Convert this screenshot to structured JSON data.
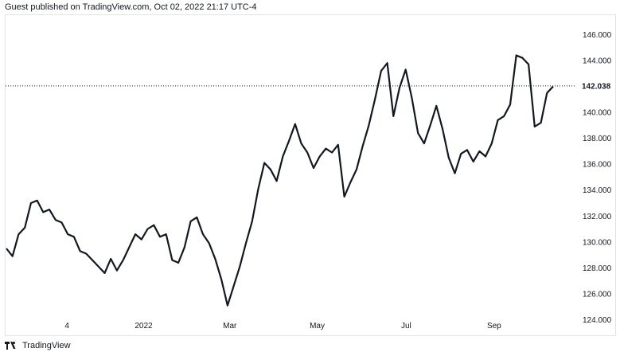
{
  "header": {
    "text": "Guest published on TradingView.com, Oct 02, 2022 21:17 UTC-4"
  },
  "footer": {
    "brand": "TradingView",
    "logo_icon": "tradingview-logo-icon"
  },
  "colors": {
    "line": "#131722",
    "grid": "#f0f3fa",
    "border": "#e0e3eb",
    "label_bg": "#ffffff"
  },
  "chart_data": {
    "type": "line",
    "title": "",
    "xlabel": "",
    "ylabel": "",
    "ylim": [
      122.8,
      147.5
    ],
    "y_ticks": [
      "124.000",
      "126.000",
      "128.000",
      "130.000",
      "132.000",
      "134.000",
      "136.000",
      "138.000",
      "140.000",
      "142.000",
      "144.000",
      "146.000"
    ],
    "x_ticks": [
      {
        "label": "4",
        "t": 0.109
      },
      {
        "label": "2022",
        "t": 0.245
      },
      {
        "label": "Mar",
        "t": 0.398
      },
      {
        "label": "May",
        "t": 0.553
      },
      {
        "label": "Jul",
        "t": 0.711
      },
      {
        "label": "Sep",
        "t": 0.867
      }
    ],
    "last_price": 142.038,
    "last_price_label": "142.038",
    "grid": false,
    "series": [
      {
        "values": [
          129.5,
          128.9,
          130.6,
          131.1,
          133.0,
          133.2,
          132.3,
          132.5,
          131.7,
          131.5,
          130.6,
          130.4,
          129.3,
          129.1,
          128.6,
          128.1,
          127.6,
          128.7,
          127.8,
          128.6,
          129.6,
          130.6,
          130.2,
          131.0,
          131.3,
          130.4,
          130.6,
          128.6,
          128.4,
          129.6,
          131.6,
          131.9,
          130.6,
          129.9,
          128.7,
          127.1,
          125.1,
          126.6,
          128.1,
          129.9,
          131.6,
          134.1,
          136.1,
          135.6,
          134.7,
          136.6,
          137.8,
          139.1,
          137.6,
          136.9,
          135.7,
          136.6,
          137.2,
          136.9,
          137.5,
          133.5,
          134.6,
          135.6,
          137.4,
          139.0,
          141.0,
          143.2,
          143.8,
          139.7,
          141.9,
          143.3,
          141.1,
          138.4,
          137.6,
          139.0,
          140.5,
          138.7,
          136.5,
          135.3,
          136.8,
          137.1,
          136.2,
          137.0,
          136.6,
          137.6,
          139.4,
          139.7,
          140.6,
          144.4,
          144.2,
          143.7,
          138.9,
          139.2,
          141.5,
          142.0
        ]
      }
    ]
  }
}
